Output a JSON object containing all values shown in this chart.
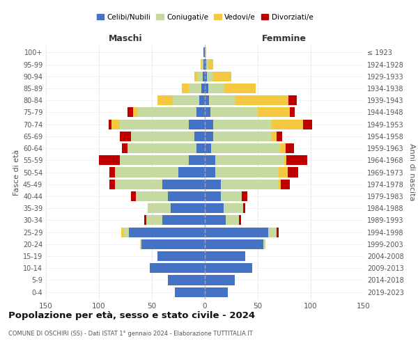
{
  "age_groups": [
    "0-4",
    "5-9",
    "10-14",
    "15-19",
    "20-24",
    "25-29",
    "30-34",
    "35-39",
    "40-44",
    "45-49",
    "50-54",
    "55-59",
    "60-64",
    "65-69",
    "70-74",
    "75-79",
    "80-84",
    "85-89",
    "90-94",
    "95-99",
    "100+"
  ],
  "birth_years": [
    "2019-2023",
    "2014-2018",
    "2009-2013",
    "2004-2008",
    "1999-2003",
    "1994-1998",
    "1989-1993",
    "1984-1988",
    "1979-1983",
    "1974-1978",
    "1969-1973",
    "1964-1968",
    "1959-1963",
    "1954-1958",
    "1949-1953",
    "1944-1948",
    "1939-1943",
    "1934-1938",
    "1929-1933",
    "1924-1928",
    "≤ 1923"
  ],
  "male": {
    "celibi": [
      28,
      35,
      52,
      45,
      60,
      72,
      40,
      32,
      35,
      40,
      25,
      15,
      8,
      10,
      15,
      8,
      5,
      3,
      2,
      1,
      1
    ],
    "coniugati": [
      0,
      0,
      0,
      0,
      1,
      5,
      15,
      22,
      30,
      45,
      60,
      65,
      65,
      60,
      65,
      55,
      25,
      12,
      5,
      2,
      0
    ],
    "vedovi": [
      0,
      0,
      0,
      0,
      0,
      2,
      0,
      0,
      0,
      0,
      0,
      0,
      0,
      0,
      8,
      5,
      15,
      7,
      3,
      1,
      0
    ],
    "divorziati": [
      0,
      0,
      0,
      0,
      0,
      0,
      2,
      0,
      5,
      5,
      5,
      20,
      5,
      10,
      3,
      5,
      0,
      0,
      0,
      0,
      0
    ]
  },
  "female": {
    "nubili": [
      22,
      28,
      45,
      38,
      55,
      60,
      20,
      18,
      15,
      15,
      10,
      10,
      6,
      8,
      8,
      5,
      4,
      3,
      2,
      1,
      0
    ],
    "coniugate": [
      0,
      0,
      0,
      0,
      2,
      8,
      12,
      18,
      20,
      55,
      60,
      65,
      65,
      55,
      55,
      45,
      25,
      15,
      5,
      2,
      0
    ],
    "vedove": [
      0,
      0,
      0,
      0,
      0,
      0,
      0,
      0,
      0,
      2,
      8,
      2,
      5,
      5,
      30,
      30,
      50,
      30,
      18,
      5,
      1
    ],
    "divorziate": [
      0,
      0,
      0,
      0,
      0,
      2,
      2,
      2,
      5,
      8,
      10,
      20,
      8,
      5,
      8,
      5,
      8,
      0,
      0,
      0,
      0
    ]
  },
  "colors": {
    "celibi": "#4472c4",
    "coniugati": "#c5d9a0",
    "vedovi": "#f5c842",
    "divorziati": "#c00000"
  },
  "title": "Popolazione per età, sesso e stato civile - 2024",
  "subtitle": "COMUNE DI OSCHIRI (SS) - Dati ISTAT 1° gennaio 2024 - Elaborazione TUTTITALIA.IT",
  "xlabel_left": "Maschi",
  "xlabel_right": "Femmine",
  "ylabel_left": "Fasce di età",
  "ylabel_right": "Anni di nascita",
  "xlim": 150,
  "bg_color": "#ffffff",
  "grid_color": "#cccccc"
}
